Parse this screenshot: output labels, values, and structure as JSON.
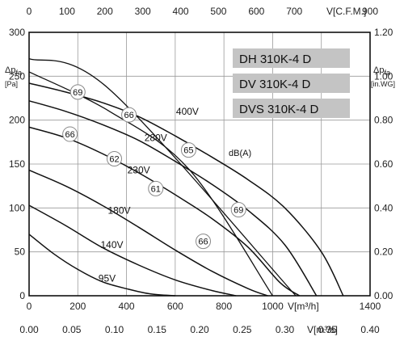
{
  "chart_data": {
    "type": "line",
    "axes": {
      "bottom": {
        "label": "V[m³/h]",
        "range": [
          0,
          1400
        ],
        "ticks": [
          "0",
          "200",
          "400",
          "600",
          "800",
          "1000",
          "1400"
        ]
      },
      "bottom2": {
        "label": "V[m³/s]",
        "range": [
          0,
          0.4
        ],
        "ticks": [
          "0.00",
          "0.05",
          "0.10",
          "0.15",
          "0.20",
          "0.25",
          "0.30",
          "0.35",
          "0.40"
        ]
      },
      "top": {
        "label": "V[C.F.M.]",
        "range": [
          0,
          900
        ],
        "ticks": [
          "0",
          "100",
          "200",
          "300",
          "400",
          "500",
          "600",
          "700",
          "900"
        ]
      },
      "left": {
        "label": "Δp",
        "sub": "fa",
        "unit": "[Pa]",
        "range": [
          0,
          300
        ],
        "ticks": [
          "0",
          "50",
          "100",
          "150",
          "200",
          "250",
          "300"
        ]
      },
      "right": {
        "label": "Δp",
        "sub": "fa",
        "unit": "[in.WG]",
        "range": [
          0,
          1.2
        ],
        "ticks": [
          "0.00",
          "0.20",
          "0.40",
          "0.60",
          "0.80",
          "1.00",
          "1.20"
        ]
      }
    },
    "grid": true,
    "series": [
      {
        "name": "400V",
        "x": [
          0,
          150,
          300,
          450,
          600,
          750,
          900,
          1050,
          1200,
          1290
        ],
        "y": [
          242,
          232,
          220,
          204,
          182,
          158,
          132,
          100,
          50,
          0
        ]
      },
      {
        "name": "280V",
        "x": [
          0,
          150,
          300,
          450,
          600,
          750,
          900,
          1050,
          1180
        ],
        "y": [
          222,
          210,
          195,
          177,
          153,
          127,
          97,
          58,
          0
        ]
      },
      {
        "name": "230V",
        "x": [
          0,
          150,
          300,
          450,
          600,
          750,
          900,
          1030,
          1110
        ],
        "y": [
          192,
          180,
          162,
          140,
          115,
          88,
          55,
          15,
          0
        ]
      },
      {
        "name": "180V",
        "x": [
          0,
          150,
          300,
          450,
          600,
          750,
          900,
          980
        ],
        "y": [
          143,
          125,
          103,
          78,
          52,
          28,
          8,
          0
        ]
      },
      {
        "name": "140V",
        "x": [
          0,
          150,
          300,
          450,
          600,
          750,
          850
        ],
        "y": [
          103,
          80,
          55,
          35,
          18,
          6,
          0
        ]
      },
      {
        "name": "95V",
        "x": [
          0,
          100,
          200,
          300,
          400,
          500,
          600
        ],
        "y": [
          70,
          48,
          30,
          16,
          8,
          2,
          0
        ]
      }
    ],
    "sound_lines": [
      {
        "x": [
          0,
          330,
          1095
        ],
        "y": [
          270,
          235,
          0
        ]
      },
      {
        "x": [
          0,
          330,
          660,
          1000
        ],
        "y": [
          255,
          210,
          143,
          0
        ]
      }
    ],
    "series_labels": [
      {
        "text": "400V",
        "x": 650,
        "y": 210
      },
      {
        "text": "280V",
        "x": 520,
        "y": 180
      },
      {
        "text": "230V",
        "x": 450,
        "y": 143
      },
      {
        "text": "180V",
        "x": 370,
        "y": 97
      },
      {
        "text": "140V",
        "x": 340,
        "y": 58
      },
      {
        "text": "95V",
        "x": 320,
        "y": 20
      }
    ],
    "sound_markers": [
      {
        "value": "69",
        "x": 200,
        "y": 232
      },
      {
        "value": "66",
        "x": 410,
        "y": 206
      },
      {
        "value": "65",
        "x": 655,
        "y": 166
      },
      {
        "value": "66",
        "x": 168,
        "y": 184
      },
      {
        "value": "62",
        "x": 350,
        "y": 156
      },
      {
        "value": "61",
        "x": 520,
        "y": 122
      },
      {
        "value": "66",
        "x": 715,
        "y": 62
      },
      {
        "value": "69",
        "x": 860,
        "y": 98
      }
    ],
    "sound_unit_label": "dB(A)",
    "models": [
      "DH 310K-4 D",
      "DV 310K-4 D",
      "DVS  310K-4 D"
    ]
  }
}
